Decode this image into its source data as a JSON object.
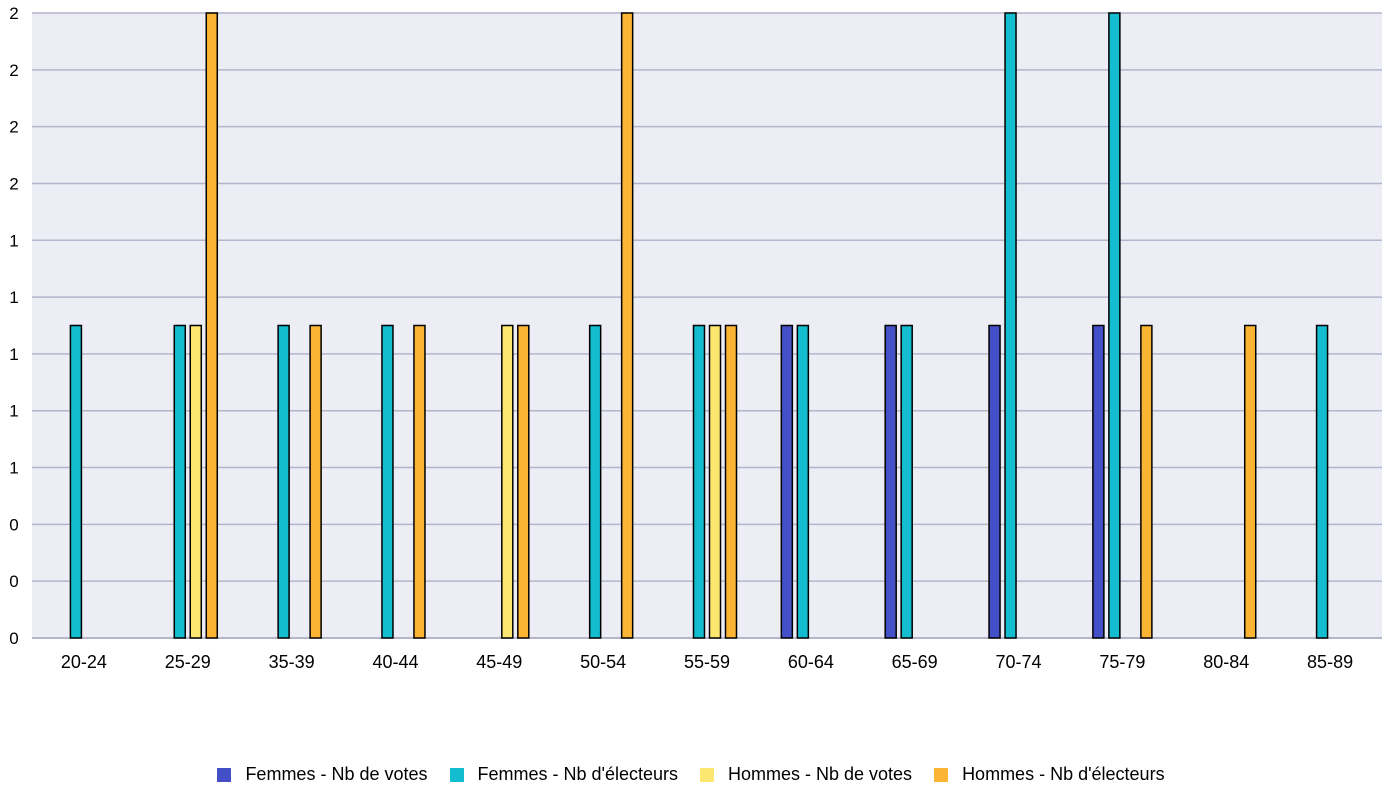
{
  "chart_data": {
    "type": "bar",
    "title": "",
    "xlabel": "",
    "ylabel": "",
    "ylim": [
      0,
      2
    ],
    "y_tick_labels": [
      "0",
      "0",
      "0",
      "1",
      "1",
      "1",
      "1",
      "1",
      "2",
      "2",
      "2",
      "2"
    ],
    "grid": true,
    "legend_position": "bottom",
    "categories": [
      "20-24",
      "25-29",
      "35-39",
      "40-44",
      "45-49",
      "50-54",
      "55-59",
      "60-64",
      "65-69",
      "70-74",
      "75-79",
      "80-84",
      "85-89"
    ],
    "series": [
      {
        "name": "Femmes - Nb de votes",
        "color": "#4450C8",
        "values": [
          0,
          0,
          0,
          0,
          0,
          0,
          0,
          1,
          1,
          1,
          1,
          0,
          0
        ]
      },
      {
        "name": "Femmes - Nb d'électeurs",
        "color": "#14BCD0",
        "values": [
          1,
          1,
          1,
          1,
          0,
          1,
          1,
          1,
          1,
          2,
          2,
          0,
          1
        ]
      },
      {
        "name": "Hommes - Nb de votes",
        "color": "#FCE870",
        "values": [
          0,
          1,
          0,
          0,
          1,
          0,
          1,
          0,
          0,
          0,
          0,
          0,
          0
        ]
      },
      {
        "name": "Hommes - Nb d'électeurs",
        "color": "#FCB434",
        "values": [
          0,
          2,
          1,
          1,
          1,
          2,
          1,
          0,
          0,
          0,
          1,
          1,
          0
        ]
      }
    ],
    "colors": {
      "plot_background": "#EDEDF5",
      "grid": "#B4B4CC",
      "axis": "#A0A0BC"
    }
  }
}
